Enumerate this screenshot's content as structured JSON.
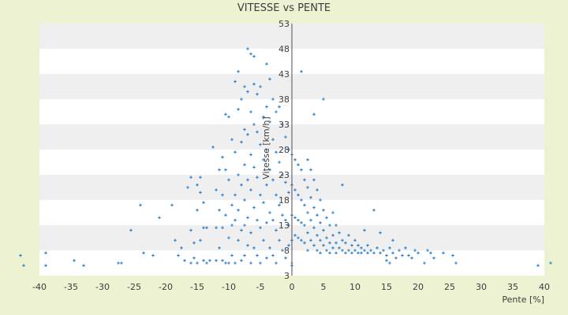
{
  "chart_data": {
    "type": "scatter",
    "title": "VITESSE vs PENTE",
    "xlabel": "Pente [%]",
    "ylabel": "Vitesse [km/h]",
    "xlim": [
      -40,
      40
    ],
    "ylim": [
      3,
      53
    ],
    "x_ticks": [
      -40,
      -35,
      -30,
      -25,
      -20,
      -15,
      -10,
      -5,
      0,
      5,
      10,
      15,
      20,
      25,
      30,
      35,
      40
    ],
    "y_ticks": [
      3,
      8,
      13,
      18,
      23,
      28,
      33,
      38,
      43,
      48,
      53
    ],
    "grid": "horizontal bands",
    "legend": "none",
    "colors": {
      "page_background": "#ecf2d2",
      "band_light": "#ffffff",
      "band_dark": "#efefef",
      "points": "#2e7fc9",
      "outlier": "#c8a24a",
      "axis": "#4d4d4d"
    },
    "series": [
      {
        "points": [
          [
            -43.0,
            7.0
          ],
          [
            -42.5,
            5.0
          ],
          [
            -39.0,
            7.5
          ],
          [
            -39.0,
            5.0
          ],
          [
            -34.5,
            6.0
          ],
          [
            -33.0,
            5.0
          ],
          [
            -27.5,
            5.5
          ],
          [
            -27.0,
            5.5
          ],
          [
            -25.5,
            12.0
          ],
          [
            -24.0,
            17.0
          ],
          [
            -23.5,
            7.5
          ],
          [
            -22.0,
            7.0
          ],
          [
            -21.0,
            14.5
          ],
          [
            -19.0,
            17.0
          ],
          [
            -18.5,
            10.0
          ],
          [
            -18.0,
            7.0
          ],
          [
            -17.5,
            8.5
          ],
          [
            -17.0,
            6.0
          ],
          [
            -16.5,
            20.5
          ],
          [
            -16.0,
            22.5
          ],
          [
            -16.0,
            12.0
          ],
          [
            -16.0,
            5.5
          ],
          [
            -15.5,
            9.5
          ],
          [
            -15.5,
            6.5
          ],
          [
            -15.0,
            16.0
          ],
          [
            -15.0,
            21.0
          ],
          [
            -15.0,
            5.5
          ],
          [
            -14.5,
            22.5
          ],
          [
            -14.5,
            19.5
          ],
          [
            -14.5,
            10.0
          ],
          [
            -14.0,
            17.5
          ],
          [
            -14.0,
            12.5
          ],
          [
            -14.0,
            6.0
          ],
          [
            -13.5,
            5.5
          ],
          [
            -13.5,
            12.5
          ],
          [
            -13.0,
            6.0
          ],
          [
            -12.5,
            28.5
          ],
          [
            -12.0,
            20.0
          ],
          [
            -12.0,
            12.5
          ],
          [
            -12.0,
            6.0
          ],
          [
            -11.5,
            16.0
          ],
          [
            -11.5,
            24.0
          ],
          [
            -11.5,
            8.5
          ],
          [
            -11.0,
            26.5
          ],
          [
            -11.0,
            19.0
          ],
          [
            -11.0,
            12.5
          ],
          [
            -11.0,
            6.0
          ],
          [
            -10.5,
            35.0
          ],
          [
            -10.5,
            24.0
          ],
          [
            -10.5,
            15.0
          ],
          [
            -10.5,
            5.5
          ],
          [
            -10.0,
            34.5
          ],
          [
            -10.0,
            22.0
          ],
          [
            -10.0,
            10.5
          ],
          [
            -10.0,
            5.5
          ],
          [
            -9.5,
            30.0
          ],
          [
            -9.5,
            17.0
          ],
          [
            -9.5,
            13.0
          ],
          [
            -9.5,
            7.0
          ],
          [
            -9.0,
            41.5
          ],
          [
            -9.0,
            27.5
          ],
          [
            -9.0,
            19.0
          ],
          [
            -9.0,
            14.0
          ],
          [
            -9.0,
            5.5
          ],
          [
            -8.5,
            43.5
          ],
          [
            -8.5,
            36.0
          ],
          [
            -8.5,
            23.0
          ],
          [
            -8.5,
            16.0
          ],
          [
            -8.5,
            10.0
          ],
          [
            -8.0,
            38.0
          ],
          [
            -8.0,
            29.5
          ],
          [
            -8.0,
            21.0
          ],
          [
            -8.0,
            12.0
          ],
          [
            -8.0,
            6.0
          ],
          [
            -7.5,
            40.5
          ],
          [
            -7.5,
            32.0
          ],
          [
            -7.5,
            25.0
          ],
          [
            -7.5,
            18.0
          ],
          [
            -7.5,
            13.0
          ],
          [
            -7.5,
            7.0
          ],
          [
            -7.0,
            48.0
          ],
          [
            -7.0,
            39.5
          ],
          [
            -7.0,
            31.0
          ],
          [
            -7.0,
            22.0
          ],
          [
            -7.0,
            14.5
          ],
          [
            -7.0,
            9.0
          ],
          [
            -6.5,
            47.0
          ],
          [
            -6.5,
            35.5
          ],
          [
            -6.5,
            27.0
          ],
          [
            -6.5,
            20.0
          ],
          [
            -6.5,
            11.5
          ],
          [
            -6.5,
            5.5
          ],
          [
            -6.0,
            46.5
          ],
          [
            -6.0,
            41.0
          ],
          [
            -6.0,
            33.0
          ],
          [
            -6.0,
            24.5
          ],
          [
            -6.0,
            16.5
          ],
          [
            -6.0,
            8.5
          ],
          [
            -5.5,
            39.0
          ],
          [
            -5.5,
            31.5
          ],
          [
            -5.5,
            22.5
          ],
          [
            -5.5,
            14.0
          ],
          [
            -5.5,
            7.0
          ],
          [
            -5.0,
            40.5
          ],
          [
            -5.0,
            29.0
          ],
          [
            -5.0,
            19.0
          ],
          [
            -5.0,
            12.5
          ],
          [
            -5.0,
            5.5
          ],
          [
            -4.5,
            34.5
          ],
          [
            -4.5,
            26.0
          ],
          [
            -4.5,
            17.5
          ],
          [
            -4.5,
            10.0
          ],
          [
            -4.0,
            45.0
          ],
          [
            -4.0,
            36.5
          ],
          [
            -4.0,
            28.0
          ],
          [
            -4.0,
            21.0
          ],
          [
            -4.0,
            13.5
          ],
          [
            -4.0,
            6.5
          ],
          [
            -3.5,
            42.0
          ],
          [
            -3.5,
            33.5
          ],
          [
            -3.5,
            24.0
          ],
          [
            -3.5,
            15.5
          ],
          [
            -3.5,
            8.5
          ],
          [
            -3.0,
            38.0
          ],
          [
            -3.0,
            30.0
          ],
          [
            -3.0,
            22.0
          ],
          [
            -3.0,
            14.0
          ],
          [
            -3.0,
            7.0
          ],
          [
            -2.5,
            35.5
          ],
          [
            -2.5,
            27.5
          ],
          [
            -2.5,
            19.0
          ],
          [
            -2.5,
            12.0
          ],
          [
            -2.5,
            5.5
          ],
          [
            -2.0,
            36.5
          ],
          [
            -2.0,
            25.5
          ],
          [
            -2.0,
            17.0
          ],
          [
            -2.0,
            10.0
          ],
          [
            -1.5,
            33.0
          ],
          [
            -1.5,
            23.0
          ],
          [
            -1.5,
            15.0
          ],
          [
            -1.5,
            8.0
          ],
          [
            -1.0,
            30.5
          ],
          [
            -1.0,
            21.5
          ],
          [
            -1.0,
            14.0
          ],
          [
            -1.0,
            6.5
          ],
          [
            -0.5,
            28.0
          ],
          [
            -0.5,
            19.5
          ],
          [
            -0.5,
            13.0
          ],
          [
            -0.5,
            9.0
          ],
          [
            0.0,
            27.0
          ],
          [
            0.0,
            21.0
          ],
          [
            0.0,
            15.0
          ],
          [
            0.0,
            10.0
          ],
          [
            0.0,
            5.0
          ],
          [
            0.5,
            26.0
          ],
          [
            0.5,
            20.0
          ],
          [
            0.5,
            14.5
          ],
          [
            0.5,
            11.0
          ],
          [
            1.0,
            25.0
          ],
          [
            1.0,
            19.0
          ],
          [
            1.0,
            14.0
          ],
          [
            1.0,
            10.5
          ],
          [
            1.5,
            24.0
          ],
          [
            1.5,
            18.0
          ],
          [
            1.5,
            13.5
          ],
          [
            1.5,
            10.0
          ],
          [
            1.5,
            43.5
          ],
          [
            2.0,
            22.0
          ],
          [
            2.0,
            17.0
          ],
          [
            2.0,
            13.0
          ],
          [
            2.0,
            9.5
          ],
          [
            2.5,
            26.0
          ],
          [
            2.5,
            20.5
          ],
          [
            2.5,
            15.5
          ],
          [
            2.5,
            11.5
          ],
          [
            2.5,
            8.0
          ],
          [
            3.0,
            24.0
          ],
          [
            3.0,
            18.5
          ],
          [
            3.0,
            14.0
          ],
          [
            3.0,
            10.0
          ],
          [
            3.5,
            35.0
          ],
          [
            3.5,
            22.0
          ],
          [
            3.5,
            16.5
          ],
          [
            3.5,
            12.5
          ],
          [
            3.5,
            9.0
          ],
          [
            4.0,
            20.0
          ],
          [
            4.0,
            15.0
          ],
          [
            4.0,
            11.0
          ],
          [
            4.0,
            8.0
          ],
          [
            4.5,
            18.0
          ],
          [
            4.5,
            13.5
          ],
          [
            4.5,
            10.0
          ],
          [
            4.5,
            7.5
          ],
          [
            5.0,
            38.0
          ],
          [
            5.0,
            16.0
          ],
          [
            5.0,
            12.0
          ],
          [
            5.0,
            9.0
          ],
          [
            5.5,
            14.5
          ],
          [
            5.5,
            10.5
          ],
          [
            5.5,
            8.0
          ],
          [
            6.0,
            13.0
          ],
          [
            6.0,
            9.5
          ],
          [
            6.0,
            7.5
          ],
          [
            6.5,
            15.5
          ],
          [
            6.5,
            11.0
          ],
          [
            6.5,
            8.5
          ],
          [
            7.0,
            13.0
          ],
          [
            7.0,
            9.5
          ],
          [
            7.0,
            7.5
          ],
          [
            7.5,
            11.5
          ],
          [
            7.5,
            8.5
          ],
          [
            8.0,
            21.0
          ],
          [
            8.0,
            10.0
          ],
          [
            8.0,
            8.0
          ],
          [
            8.5,
            9.5
          ],
          [
            8.5,
            7.5
          ],
          [
            9.0,
            11.0
          ],
          [
            9.0,
            8.0
          ],
          [
            9.5,
            9.0
          ],
          [
            9.5,
            7.5
          ],
          [
            10.0,
            10.0
          ],
          [
            10.0,
            8.0
          ],
          [
            10.5,
            9.0
          ],
          [
            10.5,
            7.5
          ],
          [
            11.0,
            8.5
          ],
          [
            11.0,
            7.5
          ],
          [
            11.5,
            12.0
          ],
          [
            11.5,
            8.0
          ],
          [
            12.0,
            9.0
          ],
          [
            12.0,
            7.5
          ],
          [
            12.5,
            8.0
          ],
          [
            13.0,
            16.0
          ],
          [
            13.0,
            7.5
          ],
          [
            13.5,
            8.5
          ],
          [
            14.0,
            11.5
          ],
          [
            14.0,
            7.5
          ],
          [
            14.5,
            8.0
          ],
          [
            15.0,
            7.0
          ],
          [
            15.0,
            6.0
          ],
          [
            15.5,
            8.5
          ],
          [
            15.5,
            5.5
          ],
          [
            16.0,
            10.0
          ],
          [
            16.0,
            7.5
          ],
          [
            16.5,
            6.5
          ],
          [
            17.0,
            8.0
          ],
          [
            17.5,
            7.0
          ],
          [
            18.0,
            8.5
          ],
          [
            18.5,
            7.0
          ],
          [
            19.0,
            6.5
          ],
          [
            19.5,
            8.0
          ],
          [
            20.0,
            7.5
          ],
          [
            21.0,
            5.5
          ],
          [
            21.5,
            8.0
          ],
          [
            22.0,
            7.5
          ],
          [
            22.5,
            6.5
          ],
          [
            24.0,
            7.5
          ],
          [
            25.5,
            7.0
          ],
          [
            26.0,
            5.5
          ],
          [
            39.0,
            5.0
          ],
          [
            41.0,
            5.5
          ],
          [
            0.0,
            5.5
          ]
        ]
      }
    ]
  }
}
